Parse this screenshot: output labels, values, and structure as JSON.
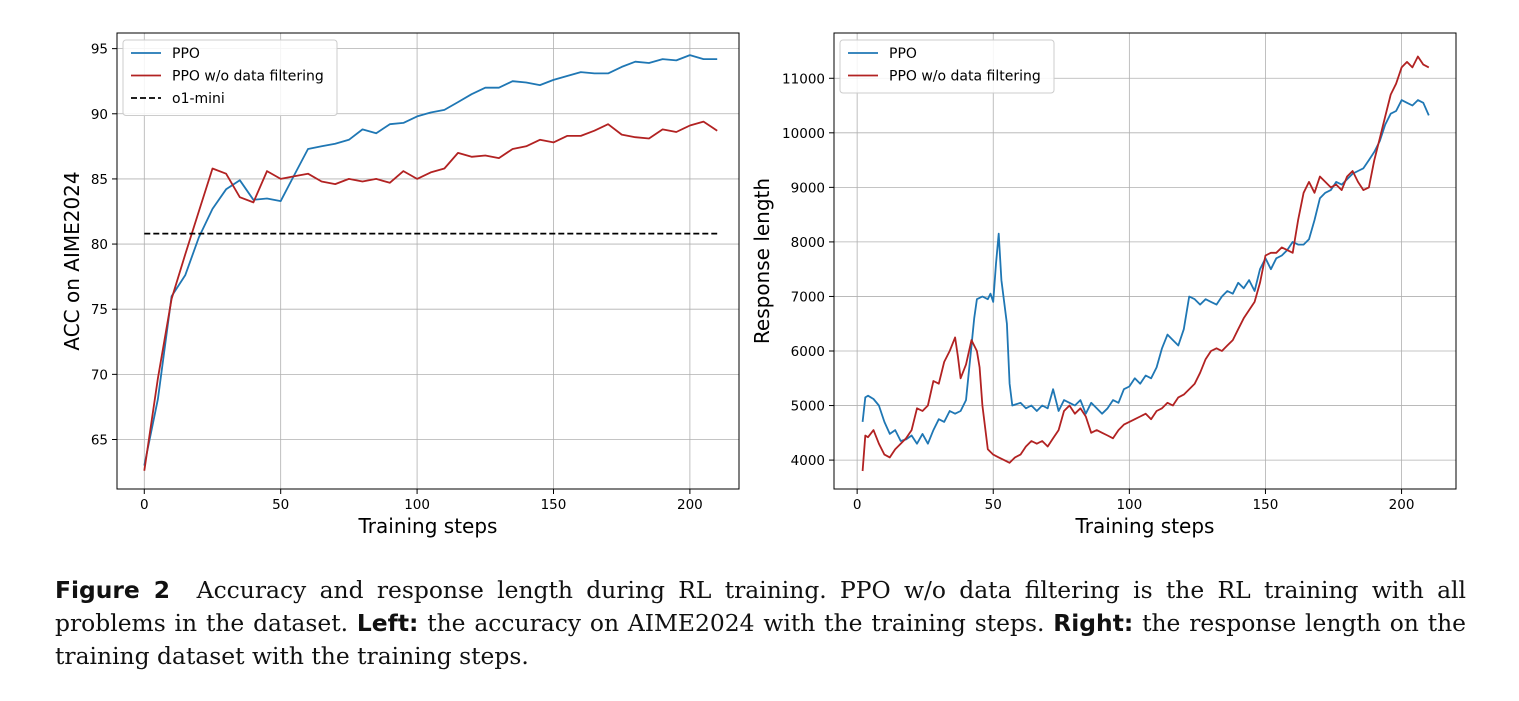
{
  "colors": {
    "ppo": "#1f77b4",
    "ppo_nofilter": "#b22222",
    "o1mini": "#000000",
    "grid": "#b0b0b0"
  },
  "chart_data": [
    {
      "type": "line",
      "xlabel": "Training steps",
      "ylabel": "ACC on AIME2024",
      "xlim": [
        -10,
        218
      ],
      "ylim": [
        61.2,
        96.2
      ],
      "xticks": [
        0,
        50,
        100,
        150,
        200
      ],
      "yticks": [
        65,
        70,
        75,
        80,
        85,
        90,
        95
      ],
      "grid": true,
      "legend": "top-left",
      "series": [
        {
          "name": "PPO",
          "color_key": "ppo",
          "dash": false,
          "x": [
            0,
            5,
            10,
            15,
            20,
            25,
            30,
            35,
            40,
            45,
            50,
            55,
            60,
            65,
            70,
            75,
            80,
            85,
            90,
            95,
            100,
            105,
            110,
            115,
            120,
            125,
            130,
            135,
            140,
            145,
            150,
            155,
            160,
            165,
            170,
            175,
            180,
            185,
            190,
            195,
            200,
            205,
            210
          ],
          "y": [
            63.0,
            68.1,
            76.0,
            77.6,
            80.5,
            82.7,
            84.2,
            84.9,
            83.4,
            83.5,
            83.3,
            85.3,
            87.3,
            87.5,
            87.7,
            88.0,
            88.8,
            88.5,
            89.2,
            89.3,
            89.8,
            90.1,
            90.3,
            90.9,
            91.5,
            92.0,
            92.0,
            92.5,
            92.4,
            92.2,
            92.6,
            92.9,
            93.2,
            93.1,
            93.1,
            93.6,
            94.0,
            93.9,
            94.2,
            94.1,
            94.5,
            94.2,
            94.2
          ]
        },
        {
          "name": "PPO w/o data filtering",
          "color_key": "ppo_nofilter",
          "dash": false,
          "x": [
            0,
            5,
            10,
            15,
            20,
            25,
            30,
            35,
            40,
            45,
            50,
            55,
            60,
            65,
            70,
            75,
            80,
            85,
            90,
            95,
            100,
            105,
            110,
            115,
            120,
            125,
            130,
            135,
            140,
            145,
            150,
            155,
            160,
            165,
            170,
            175,
            180,
            185,
            190,
            195,
            200,
            205,
            210
          ],
          "y": [
            62.6,
            69.7,
            75.8,
            79.2,
            82.5,
            85.8,
            85.4,
            83.6,
            83.2,
            85.6,
            85.0,
            85.2,
            85.4,
            84.8,
            84.6,
            85.0,
            84.8,
            85.0,
            84.7,
            85.6,
            85.0,
            85.5,
            85.8,
            87.0,
            86.7,
            86.8,
            86.6,
            87.3,
            87.5,
            88.0,
            87.8,
            88.3,
            88.3,
            88.7,
            89.2,
            88.4,
            88.2,
            88.1,
            88.8,
            88.6,
            89.1,
            89.4,
            88.7
          ]
        },
        {
          "name": "o1-mini",
          "color_key": "o1mini",
          "dash": true,
          "x": [
            0,
            210
          ],
          "y": [
            80.8,
            80.8
          ]
        }
      ]
    },
    {
      "type": "line",
      "xlabel": "Training steps",
      "ylabel": "Response length",
      "xlim": [
        -8.5,
        220
      ],
      "ylim": [
        3470,
        11830
      ],
      "xticks": [
        0,
        50,
        100,
        150,
        200
      ],
      "yticks": [
        4000,
        5000,
        6000,
        7000,
        8000,
        9000,
        10000,
        11000
      ],
      "grid": true,
      "legend": "top-left",
      "series": [
        {
          "name": "PPO",
          "color_key": "ppo",
          "dash": false,
          "x": [
            2,
            3,
            4,
            6,
            8,
            10,
            12,
            14,
            16,
            18,
            20,
            22,
            24,
            26,
            28,
            30,
            32,
            34,
            36,
            38,
            40,
            42,
            43,
            44,
            46,
            48,
            49,
            50,
            51,
            52,
            53,
            55,
            56,
            57,
            60,
            62,
            64,
            66,
            68,
            70,
            72,
            74,
            76,
            78,
            80,
            82,
            84,
            86,
            88,
            90,
            92,
            94,
            96,
            98,
            100,
            102,
            104,
            106,
            108,
            110,
            112,
            114,
            116,
            118,
            120,
            122,
            124,
            126,
            128,
            130,
            132,
            134,
            136,
            138,
            140,
            142,
            144,
            146,
            148,
            150,
            152,
            154,
            156,
            158,
            160,
            162,
            164,
            166,
            168,
            170,
            172,
            174,
            176,
            178,
            180,
            182,
            184,
            186,
            188,
            190,
            192,
            194,
            196,
            198,
            200,
            202,
            204,
            206,
            208,
            210
          ],
          "y": [
            4700,
            5150,
            5180,
            5120,
            5000,
            4700,
            4480,
            4550,
            4350,
            4380,
            4450,
            4300,
            4480,
            4300,
            4550,
            4750,
            4700,
            4900,
            4850,
            4900,
            5100,
            6100,
            6600,
            6950,
            7000,
            6950,
            7050,
            6900,
            7600,
            8150,
            7300,
            6500,
            5400,
            5000,
            5050,
            4950,
            5000,
            4900,
            5000,
            4950,
            5300,
            4900,
            5100,
            5050,
            5000,
            5100,
            4850,
            5050,
            4950,
            4850,
            4950,
            5100,
            5050,
            5300,
            5350,
            5500,
            5400,
            5550,
            5500,
            5700,
            6050,
            6300,
            6200,
            6100,
            6400,
            7000,
            6950,
            6850,
            6950,
            6900,
            6850,
            7000,
            7100,
            7050,
            7250,
            7150,
            7300,
            7100,
            7500,
            7700,
            7500,
            7700,
            7750,
            7850,
            8000,
            7950,
            7950,
            8050,
            8400,
            8800,
            8900,
            8950,
            9100,
            9050,
            9150,
            9250,
            9300,
            9350,
            9500,
            9650,
            9850,
            10150,
            10350,
            10400,
            10600,
            10550,
            10500,
            10600,
            10550,
            10320
          ]
        },
        {
          "name": "PPO w/o data filtering",
          "color_key": "ppo_nofilter",
          "dash": false,
          "x": [
            2,
            3,
            4,
            6,
            8,
            10,
            12,
            14,
            16,
            18,
            20,
            22,
            24,
            26,
            28,
            30,
            32,
            34,
            36,
            37,
            38,
            40,
            42,
            44,
            45,
            46,
            48,
            50,
            52,
            54,
            56,
            58,
            60,
            62,
            64,
            66,
            68,
            70,
            72,
            74,
            76,
            78,
            80,
            82,
            84,
            86,
            88,
            90,
            92,
            94,
            96,
            98,
            100,
            102,
            104,
            106,
            108,
            110,
            112,
            114,
            116,
            118,
            120,
            122,
            124,
            126,
            128,
            130,
            132,
            134,
            136,
            138,
            140,
            142,
            144,
            146,
            148,
            150,
            152,
            154,
            156,
            158,
            160,
            162,
            164,
            166,
            168,
            170,
            172,
            174,
            176,
            178,
            180,
            182,
            184,
            186,
            188,
            190,
            192,
            194,
            196,
            198,
            200,
            202,
            204,
            206,
            208,
            210
          ],
          "y": [
            3800,
            4450,
            4420,
            4550,
            4300,
            4100,
            4050,
            4200,
            4300,
            4400,
            4550,
            4950,
            4900,
            5000,
            5450,
            5400,
            5800,
            6000,
            6250,
            5900,
            5500,
            5750,
            6200,
            6000,
            5700,
            5000,
            4200,
            4100,
            4050,
            4000,
            3950,
            4050,
            4100,
            4250,
            4350,
            4300,
            4350,
            4250,
            4400,
            4550,
            4900,
            5000,
            4850,
            4950,
            4800,
            4500,
            4550,
            4500,
            4450,
            4400,
            4550,
            4650,
            4700,
            4750,
            4800,
            4850,
            4750,
            4900,
            4950,
            5050,
            5000,
            5150,
            5200,
            5300,
            5400,
            5600,
            5850,
            6000,
            6050,
            6000,
            6100,
            6200,
            6400,
            6600,
            6750,
            6900,
            7250,
            7750,
            7800,
            7800,
            7900,
            7850,
            7800,
            8400,
            8900,
            9100,
            8900,
            9200,
            9100,
            9000,
            9050,
            8950,
            9200,
            9300,
            9100,
            8950,
            9000,
            9500,
            9900,
            10300,
            10700,
            10900,
            11200,
            11300,
            11200,
            11400,
            11250,
            11200
          ]
        }
      ]
    }
  ],
  "caption": {
    "label": "Figure 2",
    "text": "Accuracy and response length during RL training. PPO w/o data filtering is the RL training with all problems in the dataset.",
    "left_label": "Left:",
    "left_text": "the accuracy on AIME2024 with the training steps.",
    "right_label": "Right:",
    "right_text": "the response length on the training dataset with the training steps."
  }
}
